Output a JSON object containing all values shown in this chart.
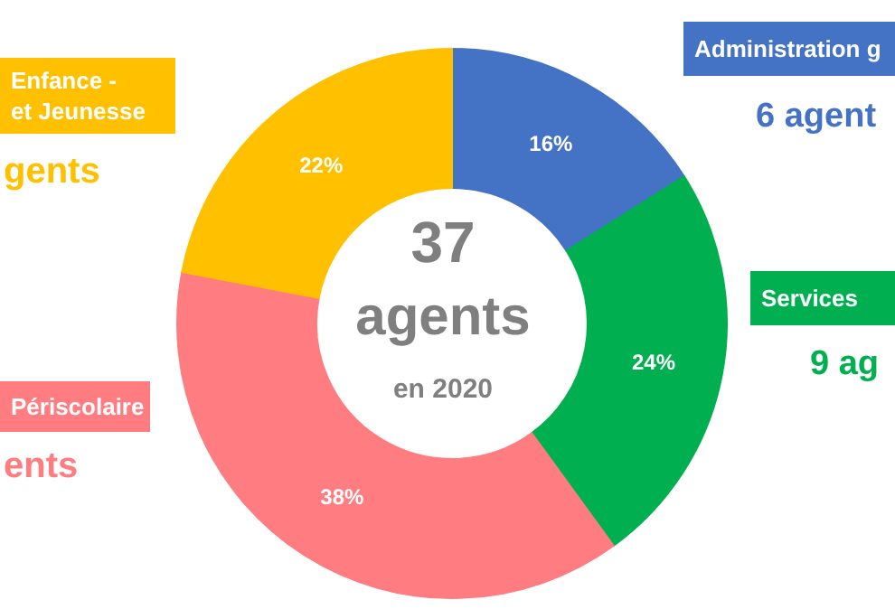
{
  "chart_data": {
    "type": "donut",
    "categories": [
      "Administration g",
      "Services",
      "Périscolaire",
      "Enfance -\net Jeunesse"
    ],
    "values": [
      16,
      24,
      38,
      22
    ],
    "colors": [
      "#4472c4",
      "#00b050",
      "#ff7c80",
      "#ffc000"
    ],
    "value_labels": [
      "16%",
      "24%",
      "38%",
      "22%"
    ],
    "annotations": [
      "37",
      "agents",
      "en 2020",
      "6 agent",
      "9 ag",
      "gents",
      "ents"
    ]
  }
}
